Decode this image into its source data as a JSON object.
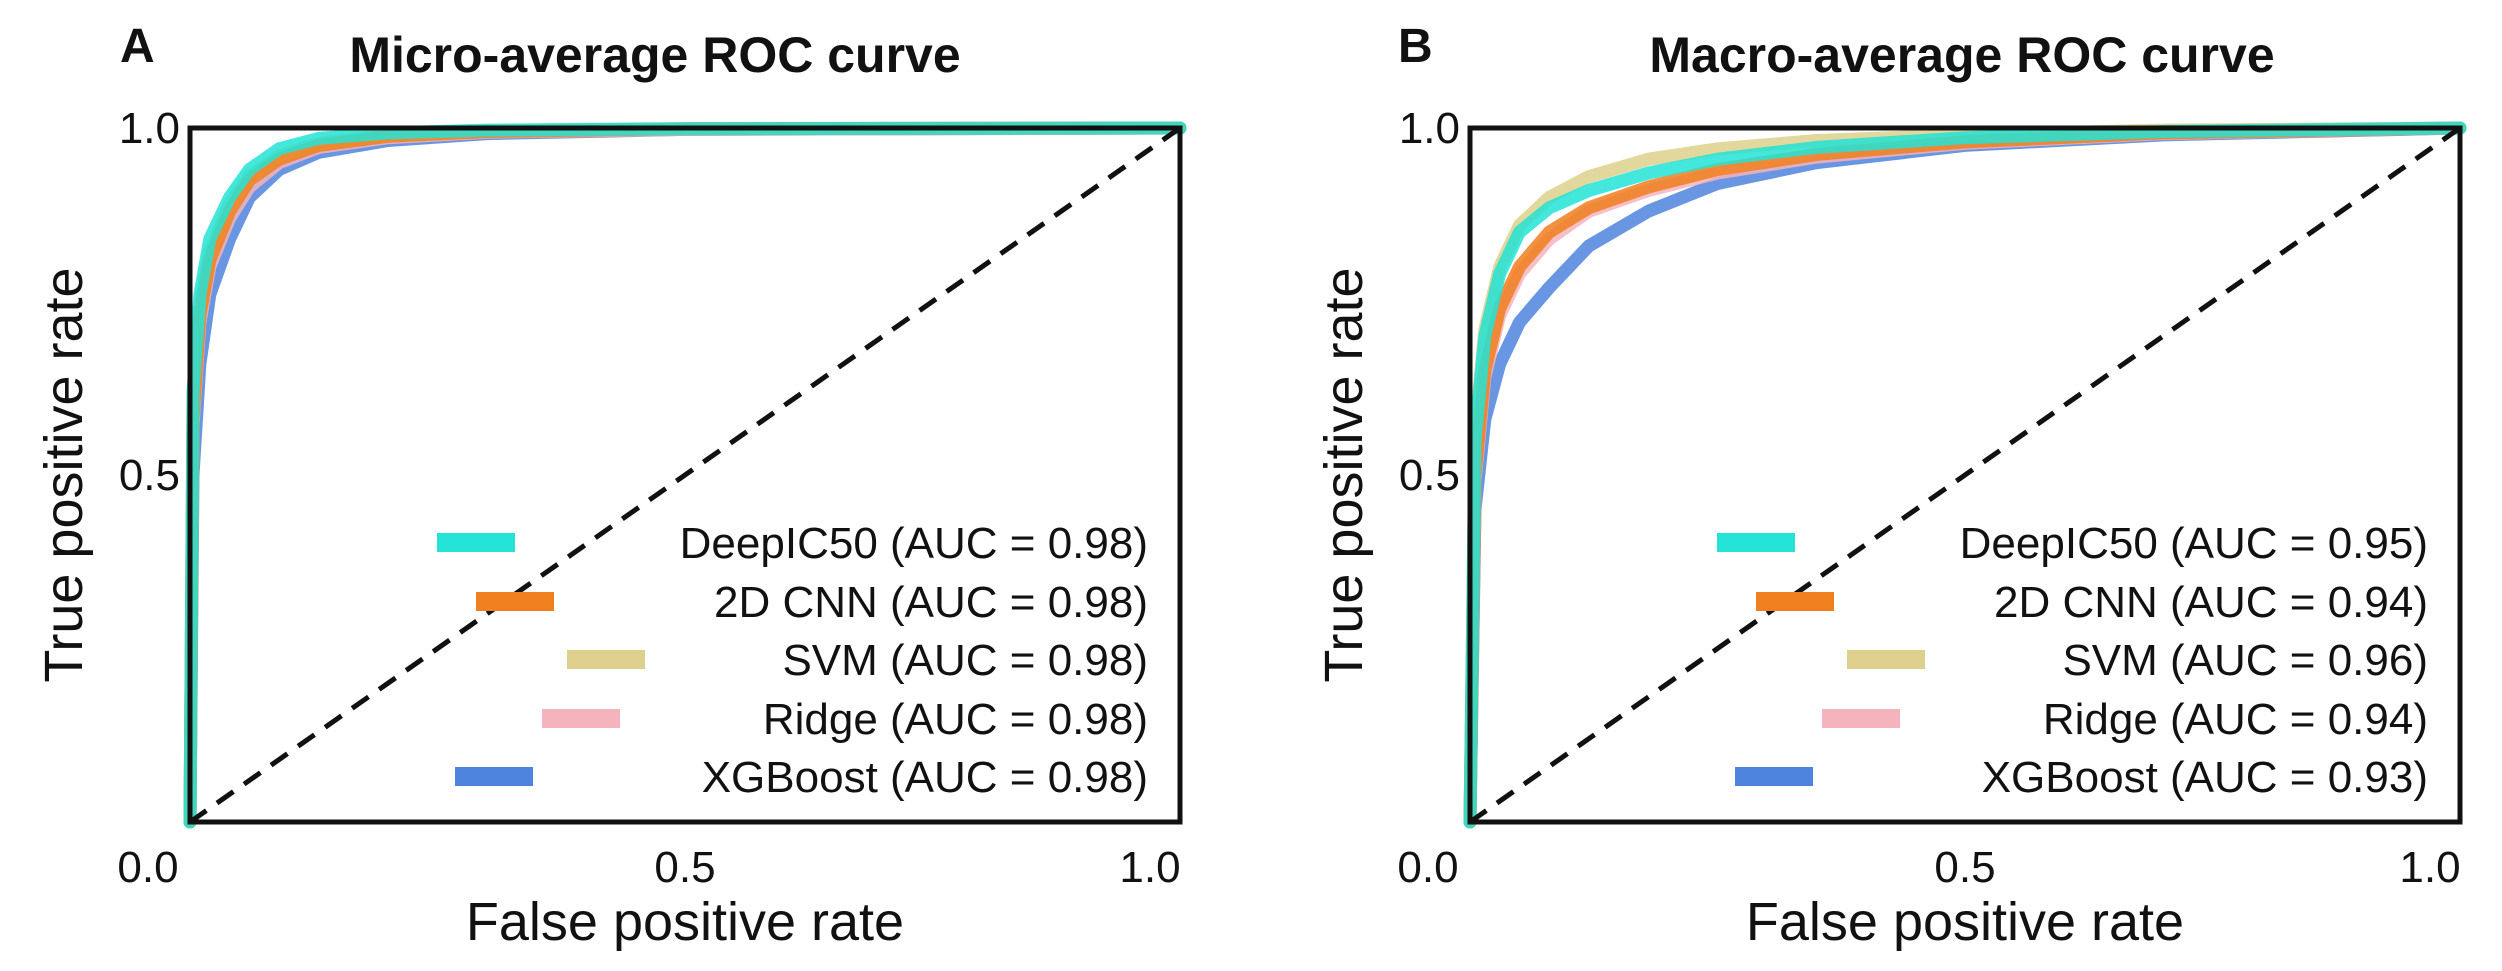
{
  "chart_data": [
    {
      "type": "line",
      "panel": "A",
      "title": "Micro-average ROC curve",
      "xlabel": "False positive rate",
      "ylabel": "True positive rate",
      "xlim": [
        0,
        1
      ],
      "ylim": [
        0,
        1
      ],
      "xticks": [
        "0.0",
        "0.5",
        "1.0"
      ],
      "yticks": [
        "0.5",
        "1.0"
      ],
      "grid": false,
      "legend_position": "bottom-right",
      "chance_line": {
        "x": [
          0,
          1
        ],
        "y": [
          0,
          1
        ],
        "style": "dashed",
        "color": "#111111"
      },
      "series": [
        {
          "name": "DeepIC50",
          "label": "DeepIC50 (AUC = 0.98)",
          "auc": 0.98,
          "color": "#22e3d6",
          "x": [
            0,
            0.003,
            0.01,
            0.02,
            0.04,
            0.06,
            0.09,
            0.13,
            0.2,
            0.3,
            0.5,
            1.0
          ],
          "y": [
            0,
            0.62,
            0.76,
            0.84,
            0.9,
            0.94,
            0.97,
            0.985,
            0.993,
            0.997,
            0.999,
            1.0
          ]
        },
        {
          "name": "2D CNN",
          "label": "2D CNN (AUC = 0.98)",
          "auc": 0.98,
          "color": "#f07f1e",
          "x": [
            0,
            0.003,
            0.01,
            0.02,
            0.04,
            0.06,
            0.09,
            0.13,
            0.2,
            0.3,
            0.5,
            1.0
          ],
          "y": [
            0,
            0.58,
            0.73,
            0.81,
            0.88,
            0.925,
            0.955,
            0.975,
            0.988,
            0.995,
            0.999,
            1.0
          ]
        },
        {
          "name": "SVM",
          "label": "SVM (AUC = 0.98)",
          "auc": 0.98,
          "color": "#ddd08c",
          "x": [
            0,
            0.003,
            0.01,
            0.02,
            0.04,
            0.06,
            0.09,
            0.13,
            0.2,
            0.3,
            0.5,
            1.0
          ],
          "y": [
            0,
            0.6,
            0.74,
            0.82,
            0.89,
            0.93,
            0.96,
            0.978,
            0.99,
            0.996,
            0.999,
            1.0
          ]
        },
        {
          "name": "Ridge",
          "label": "Ridge (AUC = 0.98)",
          "auc": 0.98,
          "color": "#f4b3bd",
          "x": [
            0,
            0.003,
            0.01,
            0.02,
            0.04,
            0.06,
            0.09,
            0.13,
            0.2,
            0.3,
            0.5,
            1.0
          ],
          "y": [
            0,
            0.57,
            0.72,
            0.8,
            0.87,
            0.915,
            0.95,
            0.972,
            0.986,
            0.994,
            0.998,
            1.0
          ]
        },
        {
          "name": "XGBoost",
          "label": "XGBoost (AUC = 0.98)",
          "auc": 0.98,
          "color": "#4f84de",
          "x": [
            0,
            0.003,
            0.01,
            0.02,
            0.04,
            0.06,
            0.09,
            0.13,
            0.2,
            0.3,
            0.5,
            1.0
          ],
          "y": [
            0,
            0.5,
            0.66,
            0.76,
            0.84,
            0.9,
            0.94,
            0.965,
            0.982,
            0.992,
            0.998,
            1.0
          ]
        }
      ]
    },
    {
      "type": "line",
      "panel": "B",
      "title": "Macro-average ROC curve",
      "xlabel": "False positive rate",
      "ylabel": "True positive rate",
      "xlim": [
        0,
        1
      ],
      "ylim": [
        0,
        1
      ],
      "xticks": [
        "0.0",
        "0.5",
        "1.0"
      ],
      "yticks": [
        "0.5",
        "1.0"
      ],
      "grid": false,
      "legend_position": "bottom-right",
      "chance_line": {
        "x": [
          0,
          1
        ],
        "y": [
          0,
          1
        ],
        "style": "dashed",
        "color": "#111111"
      },
      "series": [
        {
          "name": "DeepIC50",
          "label": "DeepIC50 (AUC = 0.95)",
          "auc": 0.95,
          "color": "#22e3d6",
          "x": [
            0,
            0.005,
            0.015,
            0.03,
            0.05,
            0.08,
            0.12,
            0.18,
            0.25,
            0.35,
            0.5,
            0.7,
            1.0
          ],
          "y": [
            0,
            0.55,
            0.7,
            0.79,
            0.85,
            0.885,
            0.91,
            0.935,
            0.955,
            0.972,
            0.986,
            0.995,
            1.0
          ]
        },
        {
          "name": "2D CNN",
          "label": "2D CNN (AUC = 0.94)",
          "auc": 0.94,
          "color": "#f07f1e",
          "x": [
            0,
            0.005,
            0.015,
            0.03,
            0.05,
            0.08,
            0.12,
            0.18,
            0.25,
            0.35,
            0.5,
            0.7,
            1.0
          ],
          "y": [
            0,
            0.5,
            0.65,
            0.74,
            0.8,
            0.85,
            0.885,
            0.915,
            0.94,
            0.962,
            0.98,
            0.993,
            1.0
          ]
        },
        {
          "name": "SVM",
          "label": "SVM (AUC = 0.96)",
          "auc": 0.96,
          "color": "#ddd08c",
          "x": [
            0,
            0.005,
            0.015,
            0.03,
            0.05,
            0.08,
            0.12,
            0.18,
            0.25,
            0.35,
            0.5,
            0.7,
            1.0
          ],
          "y": [
            0,
            0.56,
            0.71,
            0.8,
            0.86,
            0.9,
            0.93,
            0.955,
            0.97,
            0.982,
            0.99,
            0.997,
            1.0
          ]
        },
        {
          "name": "Ridge",
          "label": "Ridge (AUC = 0.94)",
          "auc": 0.94,
          "color": "#f4b3bd",
          "x": [
            0,
            0.005,
            0.015,
            0.03,
            0.05,
            0.08,
            0.12,
            0.18,
            0.25,
            0.35,
            0.5,
            0.7,
            1.0
          ],
          "y": [
            0,
            0.49,
            0.64,
            0.73,
            0.79,
            0.84,
            0.88,
            0.91,
            0.935,
            0.958,
            0.978,
            0.992,
            1.0
          ]
        },
        {
          "name": "XGBoost",
          "label": "XGBoost (AUC = 0.93)",
          "auc": 0.93,
          "color": "#4f84de",
          "x": [
            0,
            0.005,
            0.015,
            0.03,
            0.05,
            0.08,
            0.12,
            0.18,
            0.25,
            0.35,
            0.5,
            0.7,
            1.0
          ],
          "y": [
            0,
            0.45,
            0.58,
            0.66,
            0.72,
            0.77,
            0.83,
            0.88,
            0.92,
            0.95,
            0.975,
            0.99,
            1.0
          ]
        }
      ]
    }
  ]
}
